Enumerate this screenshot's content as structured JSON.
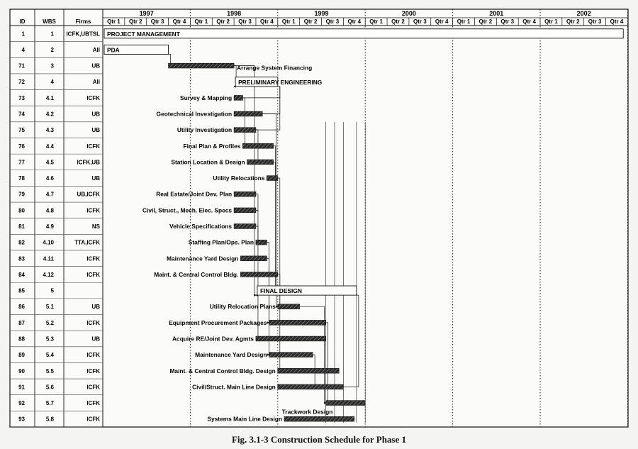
{
  "headers": {
    "id": "ID",
    "wbs": "WBS",
    "firms": "Firms"
  },
  "years": [
    "1997",
    "1998",
    "1999",
    "2000",
    "2001",
    "2002"
  ],
  "quarter_labels": [
    "Qtr 1",
    "Qtr 2",
    "Qtr 3",
    "Qtr 4"
  ],
  "timeline_start_year": 1997,
  "rows": [
    {
      "id": "1",
      "wbs": "1",
      "firms": "ICFK,UBTSL",
      "task": "PROJECT MANAGEMENT",
      "kind": "summary",
      "start": 0.0,
      "end": 23.8,
      "label_pos": "inside"
    },
    {
      "id": "4",
      "wbs": "2",
      "firms": "All",
      "task": "PDA",
      "kind": "summary",
      "start": 0.0,
      "end": 3.0,
      "label_pos": "inside"
    },
    {
      "id": "71",
      "wbs": "3",
      "firms": "UB",
      "task": "Arrange System Financing",
      "kind": "task",
      "start": 3.0,
      "end": 6.0,
      "label_pos": "right"
    },
    {
      "id": "72",
      "wbs": "4",
      "firms": "All",
      "task": "PRELIMINARY ENGINEERING",
      "kind": "summary",
      "start": 6.0,
      "end": 8.0,
      "label_pos": "inside"
    },
    {
      "id": "73",
      "wbs": "4.1",
      "firms": "ICFK",
      "task": "Survey & Mapping",
      "kind": "task",
      "start": 6.0,
      "end": 6.4,
      "label_pos": "left"
    },
    {
      "id": "74",
      "wbs": "4.2",
      "firms": "UB",
      "task": "Geotechnical Investigation",
      "kind": "task",
      "start": 6.0,
      "end": 7.3,
      "label_pos": "left"
    },
    {
      "id": "75",
      "wbs": "4.3",
      "firms": "UB",
      "task": "Utility Investigation",
      "kind": "task",
      "start": 6.0,
      "end": 7.0,
      "label_pos": "left"
    },
    {
      "id": "76",
      "wbs": "4.4",
      "firms": "ICFK",
      "task": "Final Plan & Profiles",
      "kind": "task",
      "start": 6.4,
      "end": 7.8,
      "label_pos": "left"
    },
    {
      "id": "77",
      "wbs": "4.5",
      "firms": "ICFK,UB",
      "task": "Station Location & Design",
      "kind": "task",
      "start": 6.6,
      "end": 7.8,
      "label_pos": "left"
    },
    {
      "id": "78",
      "wbs": "4.6",
      "firms": "UB",
      "task": "Utility Relocations",
      "kind": "task",
      "start": 7.5,
      "end": 8.0,
      "label_pos": "left"
    },
    {
      "id": "79",
      "wbs": "4.7",
      "firms": "UB,ICFK",
      "task": "Real Estate/Joint Dev. Plan",
      "kind": "task",
      "start": 6.0,
      "end": 7.0,
      "label_pos": "left"
    },
    {
      "id": "80",
      "wbs": "4.8",
      "firms": "ICFK",
      "task": "Civil, Struct., Mech. Elec. Specs",
      "kind": "task",
      "start": 6.0,
      "end": 7.0,
      "label_pos": "left"
    },
    {
      "id": "81",
      "wbs": "4.9",
      "firms": "NS",
      "task": "Vehicle Specifications",
      "kind": "task",
      "start": 6.0,
      "end": 7.0,
      "label_pos": "left"
    },
    {
      "id": "82",
      "wbs": "4.10",
      "firms": "TTA,ICFK",
      "task": "Staffing Plan/Ops. Plan",
      "kind": "task",
      "start": 7.0,
      "end": 7.5,
      "label_pos": "left"
    },
    {
      "id": "83",
      "wbs": "4.11",
      "firms": "ICFK",
      "task": "Maintenance Yard Design",
      "kind": "task",
      "start": 6.3,
      "end": 7.5,
      "label_pos": "left"
    },
    {
      "id": "84",
      "wbs": "4.12",
      "firms": "ICFK",
      "task": "Maint. & Central Control Bldg.",
      "kind": "task",
      "start": 6.3,
      "end": 8.0,
      "label_pos": "left"
    },
    {
      "id": "85",
      "wbs": "5",
      "firms": "",
      "task": "FINAL DESIGN",
      "kind": "summary",
      "start": 7.0,
      "end": 11.6,
      "label_pos": "inside"
    },
    {
      "id": "86",
      "wbs": "5.1",
      "firms": "UB",
      "task": "Utility Relocation Plans",
      "kind": "task",
      "start": 8.0,
      "end": 9.0,
      "label_pos": "left"
    },
    {
      "id": "87",
      "wbs": "5.2",
      "firms": "ICFK",
      "task": "Equipment Procurement Packages",
      "kind": "task",
      "start": 7.6,
      "end": 10.2,
      "label_pos": "left"
    },
    {
      "id": "88",
      "wbs": "5.3",
      "firms": "UB",
      "task": "Acquire RE/Joint Dev. Agmts",
      "kind": "task",
      "start": 7.0,
      "end": 10.2,
      "label_pos": "left"
    },
    {
      "id": "89",
      "wbs": "5.4",
      "firms": "ICFK",
      "task": "Maintenance Yard Design",
      "kind": "task",
      "start": 7.6,
      "end": 9.6,
      "label_pos": "left"
    },
    {
      "id": "90",
      "wbs": "5.5",
      "firms": "ICFK",
      "task": "Maint. & Central Control Bldg. Design",
      "kind": "task",
      "start": 8.0,
      "end": 10.8,
      "label_pos": "left"
    },
    {
      "id": "91",
      "wbs": "5.6",
      "firms": "ICFK",
      "task": "Civil/Struct. Main Line Design",
      "kind": "task",
      "start": 8.0,
      "end": 11.0,
      "label_pos": "left"
    },
    {
      "id": "92",
      "wbs": "5.7",
      "firms": "ICFK",
      "task": "Trackwork Design",
      "kind": "task",
      "start": 10.2,
      "end": 12.0,
      "label_pos": "below"
    },
    {
      "id": "93",
      "wbs": "5.8",
      "firms": "ICFK",
      "task": "Systems Main Line Design",
      "kind": "task",
      "start": 8.3,
      "end": 11.5,
      "label_pos": "left"
    }
  ],
  "caption": "Fig. 3.1-3 Construction Schedule for Phase 1"
}
